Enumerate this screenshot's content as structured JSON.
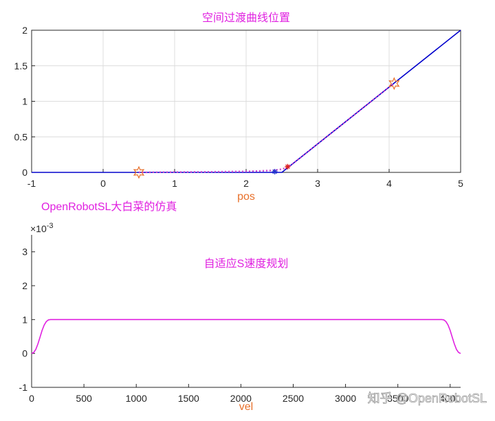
{
  "watermark": "知乎 @OpenRobotSL",
  "chart_data": [
    {
      "type": "line",
      "title": "空间过渡曲线位置",
      "xlabel": "pos",
      "ylabel": "",
      "xlim": [
        -1,
        5
      ],
      "ylim": [
        0,
        2
      ],
      "xticks": [
        "-1",
        "0",
        "1",
        "2",
        "3",
        "4",
        "5"
      ],
      "yticks": [
        "0",
        "0.5",
        "1",
        "1.5",
        "2"
      ],
      "grid": true,
      "series": [
        {
          "color": "#0000cc",
          "style": "solid",
          "x": [
            -1,
            2.5,
            5
          ],
          "y": [
            0,
            0,
            2
          ]
        },
        {
          "color": "#cc44cc",
          "style": "dotted",
          "x": [
            0.5,
            1.0,
            1.5,
            2.0,
            2.2,
            2.4,
            2.5,
            2.6,
            2.8,
            3.0,
            3.5,
            4.0,
            4.07
          ],
          "y": [
            0,
            0.004,
            0.008,
            0.014,
            0.02,
            0.03,
            0.045,
            0.08,
            0.24,
            0.4,
            0.8,
            1.2,
            1.25
          ]
        }
      ],
      "markers": [
        {
          "shape": "star-hexagram",
          "color": "#e8702a",
          "x": 0.5,
          "y": 0
        },
        {
          "shape": "asterisk",
          "color": "#2233cc",
          "x": 2.4,
          "y": 0.01
        },
        {
          "shape": "asterisk",
          "color": "#dd2222",
          "x": 2.58,
          "y": 0.08
        },
        {
          "shape": "star-hexagram",
          "color": "#e8702a",
          "x": 4.07,
          "y": 1.25
        }
      ],
      "annotation": "OpenRobotSL大白菜的仿真"
    },
    {
      "type": "line",
      "title": "自适应S速度规划",
      "xlabel": "vel",
      "ylabel": "",
      "exponent": "×10",
      "exponent_power": "-3",
      "xlim": [
        0,
        4100
      ],
      "ylim": [
        -1,
        3.5
      ],
      "xticks": [
        "0",
        "500",
        "1000",
        "1500",
        "2000",
        "2500",
        "3000",
        "3500",
        "4000"
      ],
      "yticks": [
        "-1",
        "0",
        "1",
        "2",
        "3"
      ],
      "grid": false,
      "series": [
        {
          "color": "#e020e0",
          "style": "solid",
          "x": [
            0,
            20,
            40,
            60,
            80,
            100,
            120,
            140,
            160,
            180,
            200,
            3900,
            3920,
            3940,
            3960,
            3980,
            4000,
            4020,
            4040,
            4060,
            4080,
            4100
          ],
          "y": [
            0,
            0.03,
            0.12,
            0.28,
            0.48,
            0.68,
            0.84,
            0.94,
            0.99,
            1.0,
            1.0,
            1.0,
            1.0,
            0.99,
            0.94,
            0.84,
            0.68,
            0.48,
            0.28,
            0.12,
            0.03,
            0
          ]
        }
      ]
    }
  ]
}
